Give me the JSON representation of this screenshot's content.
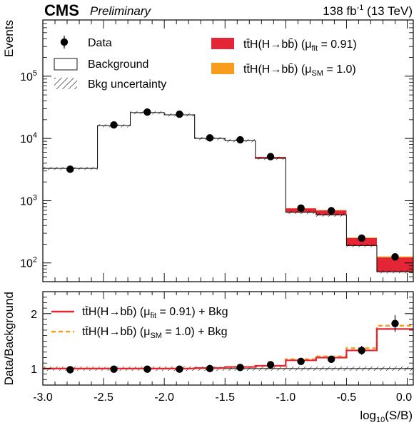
{
  "header": {
    "experiment": "CMS",
    "status": "Preliminary",
    "lumi_value": "138 fb",
    "lumi_exp": "-1",
    "lumi_energy": " (13 TeV)"
  },
  "colors": {
    "fit": "#e42536",
    "sm": "#f89c20",
    "ratio_line": "#e42536",
    "ratio_sm": "#f89c20"
  },
  "chart_data": [
    {
      "type": "bar",
      "subtype": "stacked-histogram",
      "ylabel": "Events",
      "yscale": "log",
      "ylim": [
        50,
        800000
      ],
      "xlim": [
        -3.0,
        0.05
      ],
      "yticks": [
        {
          "value": 100,
          "base": "10",
          "exp": "2"
        },
        {
          "value": 1000,
          "base": "10",
          "exp": "3"
        },
        {
          "value": 10000,
          "base": "10",
          "exp": "4"
        },
        {
          "value": 100000,
          "base": "10",
          "exp": "5"
        }
      ],
      "bin_edges": [
        -3.0,
        -2.55,
        -2.28,
        -2.0,
        -1.75,
        -1.5,
        -1.25,
        -1.0,
        -0.75,
        -0.5,
        -0.25,
        0.05
      ],
      "data": [
        3200,
        16500,
        26500,
        24500,
        10200,
        9500,
        5100,
        760,
        690,
        250,
        125
      ],
      "background": [
        3300,
        16000,
        26000,
        24000,
        10000,
        9200,
        4800,
        650,
        590,
        190,
        72
      ],
      "signal_fit": [
        4,
        25,
        45,
        60,
        60,
        60,
        240,
        100,
        105,
        60,
        50
      ],
      "signal_sm": [
        5,
        27,
        50,
        65,
        65,
        65,
        262,
        108,
        115,
        66,
        55
      ],
      "legend": [
        {
          "label": "Data",
          "kind": "marker"
        },
        {
          "label": "Background",
          "kind": "box"
        },
        {
          "label": "Bkg uncertainty",
          "kind": "hatch"
        },
        {
          "label_main": "tt̄H(H→bb̄)",
          "label_mu": "μ",
          "label_sub": "fit",
          "label_val": " = 0.91)",
          "kind": "fit"
        },
        {
          "label_main": "tt̄H(H→bb̄)",
          "label_mu": "μ",
          "label_sub": "SM",
          "label_val": " = 1.0)",
          "kind": "sm"
        }
      ]
    },
    {
      "type": "line",
      "subtype": "ratio",
      "ylabel": "Data/Background",
      "xlabel_main": "log",
      "xlabel_sub": "10",
      "xlabel_rest": "(S/B)",
      "ylim": [
        0.7,
        2.4
      ],
      "yticks": [
        "1",
        "2"
      ],
      "xticks": [
        "-3.0",
        "-2.5",
        "-2.0",
        "-1.5",
        "-1.0",
        "-0.5",
        "0.0"
      ],
      "data_ratio": [
        0.98,
        0.99,
        0.99,
        0.99,
        1.0,
        1.02,
        1.07,
        1.13,
        1.17,
        1.33,
        1.82
      ],
      "data_err": [
        0.02,
        0.02,
        0.02,
        0.02,
        0.02,
        0.03,
        0.03,
        0.05,
        0.05,
        0.08,
        0.15
      ],
      "fit_ratio": [
        1.0,
        1.0,
        1.0,
        1.0,
        1.01,
        1.03,
        1.05,
        1.15,
        1.2,
        1.33,
        1.72
      ],
      "sm_ratio": [
        1.0,
        1.0,
        1.0,
        1.0,
        1.01,
        1.03,
        1.05,
        1.17,
        1.22,
        1.37,
        1.78
      ],
      "legend": [
        {
          "label_main": "tt̄H(H→bb̄)",
          "label_mu": "μ",
          "label_sub": "fit",
          "label_val": " = 0.91) + Bkg",
          "kind": "fit-line"
        },
        {
          "label_main": "tt̄H(H→bb̄)",
          "label_mu": "μ",
          "label_sub": "SM",
          "label_val": " = 1.0) + Bkg",
          "kind": "sm-line"
        }
      ]
    }
  ]
}
